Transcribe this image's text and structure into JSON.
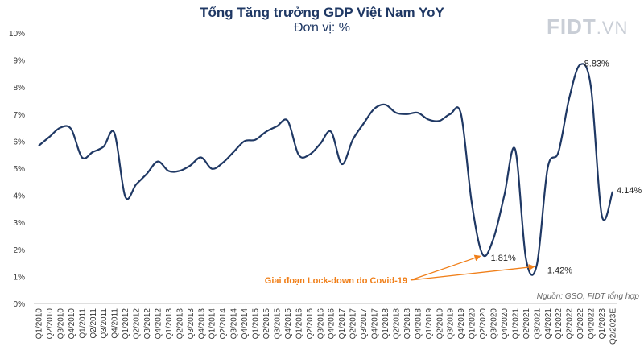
{
  "logo": {
    "main": "FIDT",
    "suffix": ".VN"
  },
  "chart_data": {
    "type": "line",
    "title": "Tổng Tăng trưởng GDP Việt Nam YoY",
    "subtitle": "Đơn vị: %",
    "source": "Nguồn: GSO, FIDT tổng hợp",
    "ylim": [
      0,
      10
    ],
    "yticks": [
      "0%",
      "1%",
      "2%",
      "3%",
      "4%",
      "5%",
      "6%",
      "7%",
      "8%",
      "9%",
      "10%"
    ],
    "grid": false,
    "line_color": "#1f3864",
    "annotation": {
      "text": "Giai đoạn Lock-down do Covid-19",
      "color": "#f07f19",
      "targets": [
        "Q2/2020",
        "Q3/2021"
      ]
    },
    "categories": [
      "Q1/2010",
      "Q2/2010",
      "Q3/2010",
      "Q4/2010",
      "Q1/2011",
      "Q2/2011",
      "Q3/2011",
      "Q4/2011",
      "Q1/2012",
      "Q2/2012",
      "Q3/2012",
      "Q4/2012",
      "Q1/2013",
      "Q2/2013",
      "Q3/2013",
      "Q4/2013",
      "Q1/2014",
      "Q2/2014",
      "Q3/2014",
      "Q4/2014",
      "Q1/2015",
      "Q2/2015",
      "Q3/2015",
      "Q4/2015",
      "Q1/2016",
      "Q2/2016",
      "Q3/2016",
      "Q4/2016",
      "Q1/2017",
      "Q2/2017",
      "Q3/2017",
      "Q4/2017",
      "Q1/2018",
      "Q2/2018",
      "Q3/2018",
      "Q4/2018",
      "Q1/2019",
      "Q2/2019",
      "Q3/2019",
      "Q4/2019",
      "Q1/2020",
      "Q2/2020",
      "Q3/2020",
      "Q4/2020",
      "Q1/2021",
      "Q2/2021",
      "Q3/2021",
      "Q4/2021",
      "Q1/2022",
      "Q2/2022",
      "Q3/2022",
      "Q4/2022",
      "Q1/2023",
      "Q2/2023E"
    ],
    "values": [
      5.83,
      6.16,
      6.5,
      6.45,
      5.4,
      5.6,
      5.8,
      6.3,
      3.95,
      4.4,
      4.8,
      5.25,
      4.9,
      4.9,
      5.1,
      5.4,
      4.98,
      5.2,
      5.6,
      6.0,
      6.05,
      6.35,
      6.55,
      6.75,
      5.5,
      5.5,
      5.9,
      6.35,
      5.15,
      6.05,
      6.65,
      7.2,
      7.35,
      7.05,
      7.0,
      7.05,
      6.8,
      6.75,
      7.0,
      7.0,
      3.7,
      1.81,
      2.4,
      4.0,
      5.7,
      1.65,
      1.42,
      5.0,
      5.6,
      7.6,
      8.83,
      8.0,
      3.25,
      4.14
    ],
    "labels": [
      {
        "category": "Q2/2020",
        "text": "1.81%"
      },
      {
        "category": "Q3/2021",
        "text": "1.42%"
      },
      {
        "category": "Q3/2022",
        "text": "8.83%"
      },
      {
        "category": "Q2/2023E",
        "text": "4.14%"
      }
    ]
  }
}
